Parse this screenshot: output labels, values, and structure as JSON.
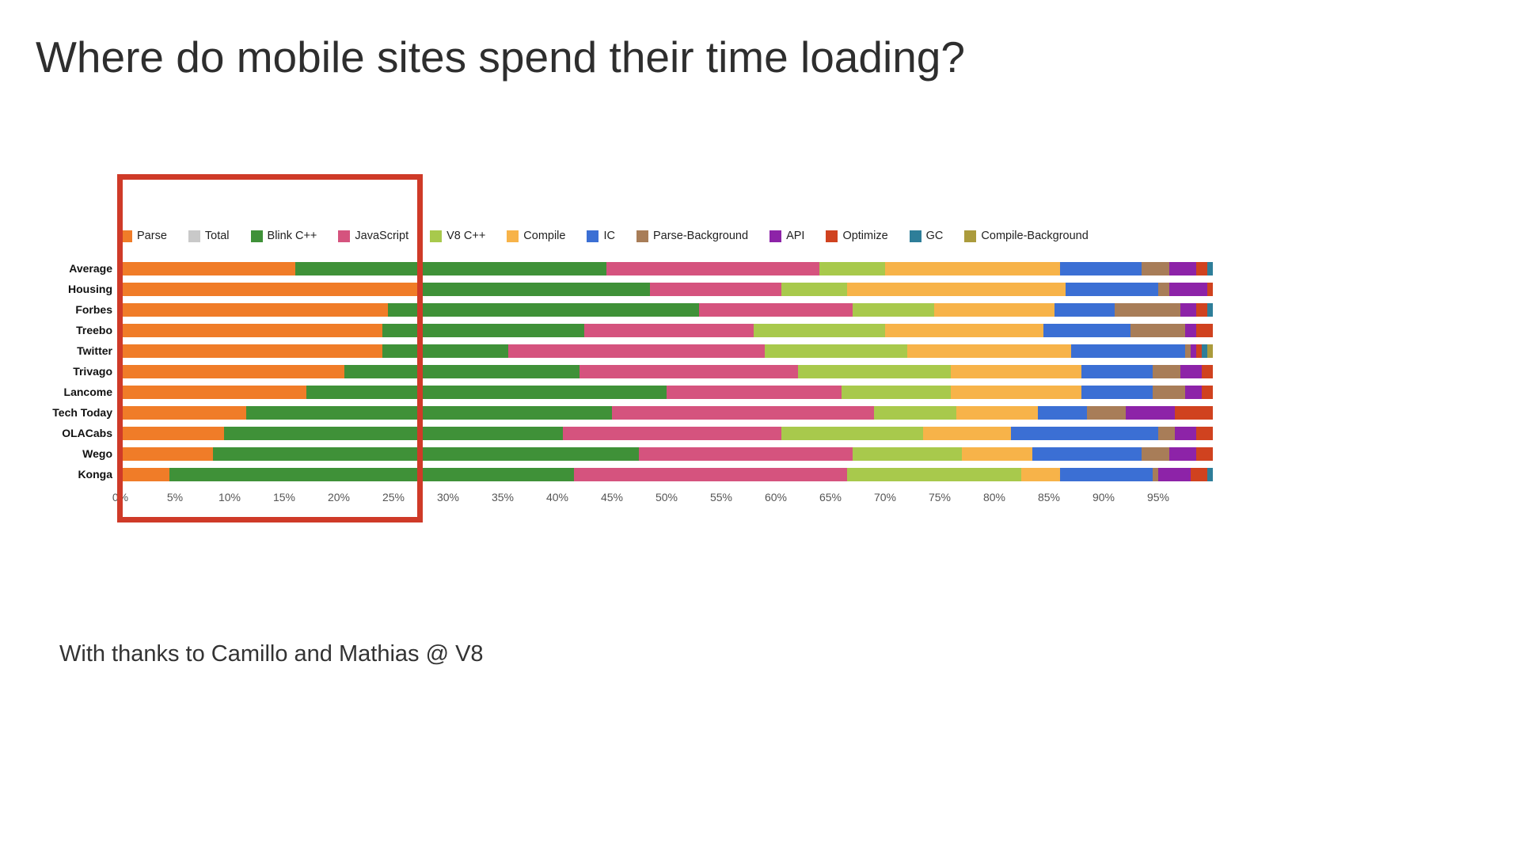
{
  "page": {
    "title": "Where do mobile sites spend their time loading?",
    "footer": "With thanks to Camillo and Mathias @ V8"
  },
  "overlay": {
    "highlight_color": "#cf3a28",
    "highlight_range": "0% to ~27%"
  },
  "chart_data": {
    "type": "bar",
    "orientation": "horizontal",
    "stacked": true,
    "unit": "%",
    "xlim": [
      0,
      100
    ],
    "grid": false,
    "legend_position": "top",
    "x_ticks": [
      "0%",
      "5%",
      "10%",
      "15%",
      "20%",
      "25%",
      "30%",
      "35%",
      "40%",
      "45%",
      "50%",
      "55%",
      "60%",
      "65%",
      "70%",
      "75%",
      "80%",
      "85%",
      "90%",
      "95%"
    ],
    "categories": [
      "Average",
      "Housing",
      "Forbes",
      "Treebo",
      "Twitter",
      "Trivago",
      "Lancome",
      "Tech Today",
      "OLACabs",
      "Wego",
      "Konga"
    ],
    "legend": [
      {
        "label": "Parse",
        "color": "#f07c28"
      },
      {
        "label": "Total",
        "color": "#c9c9c9"
      },
      {
        "label": "Blink C++",
        "color": "#3f9138"
      },
      {
        "label": "JavaScript",
        "color": "#d5537e"
      },
      {
        "label": "V8 C++",
        "color": "#a8c94c"
      },
      {
        "label": "Compile",
        "color": "#f7b349"
      },
      {
        "label": "IC",
        "color": "#3b6fd4"
      },
      {
        "label": "Parse-Background",
        "color": "#a87d58"
      },
      {
        "label": "API",
        "color": "#8d23a8"
      },
      {
        "label": "Optimize",
        "color": "#d0421f"
      },
      {
        "label": "GC",
        "color": "#2e7e99"
      },
      {
        "label": "Compile-Background",
        "color": "#ab9b3c"
      }
    ],
    "series": [
      {
        "name": "Parse",
        "color": "#f07c28",
        "values": [
          16,
          27.5,
          24.5,
          24,
          24,
          20.5,
          17,
          11.5,
          9.5,
          8.5,
          4.5
        ]
      },
      {
        "name": "Blink C++",
        "color": "#3f9138",
        "values": [
          28.5,
          21,
          28.5,
          18.5,
          11.5,
          21.5,
          33,
          33.5,
          31,
          39,
          37
        ]
      },
      {
        "name": "JavaScript",
        "color": "#d5537e",
        "values": [
          19.5,
          12,
          14,
          15.5,
          23.5,
          20,
          16,
          24,
          20,
          19.5,
          25
        ]
      },
      {
        "name": "V8 C++",
        "color": "#a8c94c",
        "values": [
          6,
          6,
          7.5,
          12,
          13,
          14,
          10,
          7.5,
          13,
          10,
          16
        ]
      },
      {
        "name": "Compile",
        "color": "#f7b349",
        "values": [
          16,
          20,
          11,
          14.5,
          15,
          12,
          12,
          7.5,
          8,
          6.5,
          3.5
        ]
      },
      {
        "name": "IC",
        "color": "#3b6fd4",
        "values": [
          7.5,
          8.5,
          5.5,
          8,
          10.5,
          6.5,
          6.5,
          4.5,
          13.5,
          10,
          8.5
        ]
      },
      {
        "name": "Parse-Background",
        "color": "#a87d58",
        "values": [
          2.5,
          1,
          6,
          5,
          0.5,
          2.5,
          3,
          3.5,
          1.5,
          2.5,
          0.5
        ]
      },
      {
        "name": "API",
        "color": "#8d23a8",
        "values": [
          2.5,
          3.5,
          1.5,
          1,
          0.5,
          2,
          1.5,
          4.5,
          2,
          2.5,
          3
        ]
      },
      {
        "name": "Optimize",
        "color": "#d0421f",
        "values": [
          1,
          0.5,
          1,
          1.5,
          0.5,
          1,
          1,
          3.5,
          1.5,
          1.5,
          1.5
        ]
      },
      {
        "name": "GC",
        "color": "#2e7e99",
        "values": [
          0.5,
          0,
          0.5,
          0,
          0.5,
          0,
          0,
          0,
          0,
          0,
          0.5
        ]
      },
      {
        "name": "Compile-Background",
        "color": "#ab9b3c",
        "values": [
          0,
          0,
          0,
          0,
          0.5,
          0,
          0,
          0,
          0,
          0,
          0
        ]
      }
    ]
  }
}
